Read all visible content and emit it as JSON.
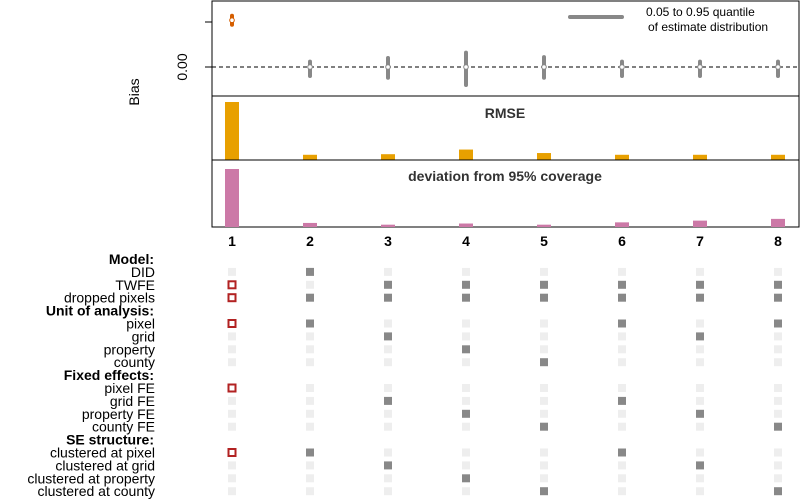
{
  "chart_data": {
    "type": "specification_chart",
    "columns": [
      "1",
      "2",
      "3",
      "4",
      "5",
      "6",
      "7",
      "8"
    ],
    "bias_panel": {
      "ylabel": "Bias",
      "ytick_label": "0.00",
      "legend_label": "0.05 to 0.95 quantile\nof estimate distribution",
      "estimates": [
        {
          "col": "1",
          "point": 0.52,
          "q05": 0.47,
          "q95": 0.57,
          "color": "#d55e00"
        },
        {
          "col": "2",
          "point": 0.0,
          "q05": -0.1,
          "q95": 0.06,
          "color": "#888888"
        },
        {
          "col": "3",
          "point": 0.0,
          "q05": -0.12,
          "q95": 0.1,
          "color": "#888888"
        },
        {
          "col": "4",
          "point": 0.0,
          "q05": -0.2,
          "q95": 0.16,
          "color": "#888888"
        },
        {
          "col": "5",
          "point": 0.0,
          "q05": -0.12,
          "q95": 0.11,
          "color": "#888888"
        },
        {
          "col": "6",
          "point": 0.0,
          "q05": -0.1,
          "q95": 0.06,
          "color": "#888888"
        },
        {
          "col": "7",
          "point": 0.0,
          "q05": -0.1,
          "q95": 0.06,
          "color": "#888888"
        },
        {
          "col": "8",
          "point": 0.0,
          "q05": -0.1,
          "q95": 0.06,
          "color": "#888888"
        }
      ]
    },
    "rmse_panel": {
      "title": "RMSE",
      "color": "#e8a000",
      "values": [
        1.0,
        0.09,
        0.1,
        0.18,
        0.12,
        0.09,
        0.09,
        0.09
      ]
    },
    "coverage_panel": {
      "title": "deviation from 95% coverage",
      "color": "#cc79a7",
      "values": [
        1.0,
        0.07,
        0.04,
        0.06,
        0.04,
        0.08,
        0.11,
        0.14
      ]
    },
    "spec_matrix": {
      "groups": [
        {
          "header": "Model:",
          "rows": [
            {
              "label": "DID",
              "selected": [
                2
              ]
            },
            {
              "label": "TWFE",
              "selected": [
                1,
                3,
                4,
                5,
                6,
                7,
                8
              ]
            },
            {
              "label": "dropped pixels",
              "selected": [
                1,
                2,
                3,
                4,
                5,
                6,
                7,
                8
              ]
            }
          ]
        },
        {
          "header": "Unit of analysis:",
          "rows": [
            {
              "label": "pixel",
              "selected": [
                1,
                2,
                6,
                8
              ]
            },
            {
              "label": "grid",
              "selected": [
                3,
                7
              ]
            },
            {
              "label": "property",
              "selected": [
                4
              ]
            },
            {
              "label": "county",
              "selected": [
                5
              ]
            }
          ]
        },
        {
          "header": "Fixed effects:",
          "rows": [
            {
              "label": "pixel FE",
              "selected": [
                1
              ]
            },
            {
              "label": "grid FE",
              "selected": [
                3,
                6
              ]
            },
            {
              "label": "property FE",
              "selected": [
                4,
                7
              ]
            },
            {
              "label": "county FE",
              "selected": [
                5,
                8
              ]
            }
          ]
        },
        {
          "header": "SE structure:",
          "rows": [
            {
              "label": "clustered at pixel",
              "selected": [
                1,
                2,
                6
              ]
            },
            {
              "label": "clustered at grid",
              "selected": [
                3,
                7
              ]
            },
            {
              "label": "clustered at property",
              "selected": [
                4
              ]
            },
            {
              "label": "clustered at county",
              "selected": [
                5,
                8
              ]
            }
          ]
        }
      ],
      "highlight_column": "1",
      "colors": {
        "highlight": "#b22222",
        "selected": "#888888",
        "unselected": "#eeeeee"
      }
    }
  }
}
